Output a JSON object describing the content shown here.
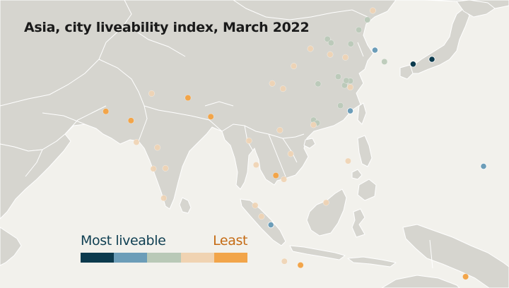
{
  "title": "Asia, city liveability index, March 2022",
  "legend": {
    "most_label": "Most liveable",
    "least_label": "Least",
    "most_color": "#0f3f52",
    "least_color": "#c56b14",
    "classes": [
      {
        "level": 1,
        "color": "#0c3a4d"
      },
      {
        "level": 2,
        "color": "#6c9db8"
      },
      {
        "level": 3,
        "color": "#b9c9b7"
      },
      {
        "level": 4,
        "color": "#f0d3b2"
      },
      {
        "level": 5,
        "color": "#f2a54a"
      }
    ]
  },
  "cities": [
    {
      "lon": 139.7,
      "lat": 35.7,
      "level": 1
    },
    {
      "lon": 135.5,
      "lat": 34.7,
      "level": 1
    },
    {
      "lon": 127.0,
      "lat": 37.6,
      "level": 2
    },
    {
      "lon": 121.5,
      "lat": 25.0,
      "level": 2
    },
    {
      "lon": 151.2,
      "lat": 13.5,
      "level": 2
    },
    {
      "lon": 103.8,
      "lat": 1.35,
      "level": 2
    },
    {
      "lon": 129.1,
      "lat": 35.2,
      "level": 3
    },
    {
      "lon": 116.4,
      "lat": 39.9,
      "level": 3
    },
    {
      "lon": 117.2,
      "lat": 39.1,
      "level": 3
    },
    {
      "lon": 121.5,
      "lat": 31.2,
      "level": 3
    },
    {
      "lon": 120.2,
      "lat": 30.3,
      "level": 3
    },
    {
      "lon": 118.8,
      "lat": 32.1,
      "level": 3
    },
    {
      "lon": 120.6,
      "lat": 31.3,
      "level": 3
    },
    {
      "lon": 114.3,
      "lat": 30.6,
      "level": 3
    },
    {
      "lon": 113.3,
      "lat": 23.1,
      "level": 3
    },
    {
      "lon": 114.1,
      "lat": 22.5,
      "level": 3
    },
    {
      "lon": 119.3,
      "lat": 26.1,
      "level": 3
    },
    {
      "lon": 125.3,
      "lat": 43.9,
      "level": 3
    },
    {
      "lon": 123.4,
      "lat": 41.8,
      "level": 3
    },
    {
      "lon": 121.6,
      "lat": 38.9,
      "level": 3
    },
    {
      "lon": 120.4,
      "lat": 36.1,
      "level": 4
    },
    {
      "lon": 117.0,
      "lat": 36.7,
      "level": 4
    },
    {
      "lon": 126.5,
      "lat": 45.8,
      "level": 4
    },
    {
      "lon": 121.5,
      "lat": 29.9,
      "level": 4
    },
    {
      "lon": 112.6,
      "lat": 37.9,
      "level": 4
    },
    {
      "lon": 108.9,
      "lat": 34.3,
      "level": 4
    },
    {
      "lon": 104.1,
      "lat": 30.7,
      "level": 4
    },
    {
      "lon": 106.5,
      "lat": 29.6,
      "level": 4
    },
    {
      "lon": 113.3,
      "lat": 22.1,
      "level": 4
    },
    {
      "lon": 108.2,
      "lat": 16.1,
      "level": 4
    },
    {
      "lon": 105.8,
      "lat": 21.0,
      "level": 4
    },
    {
      "lon": 106.7,
      "lat": 10.8,
      "level": 4
    },
    {
      "lon": 100.5,
      "lat": 13.8,
      "level": 4
    },
    {
      "lon": 98.9,
      "lat": 18.8,
      "level": 4
    },
    {
      "lon": 121.0,
      "lat": 14.6,
      "level": 4
    },
    {
      "lon": 101.7,
      "lat": 3.1,
      "level": 4
    },
    {
      "lon": 100.3,
      "lat": 5.4,
      "level": 4
    },
    {
      "lon": 116.1,
      "lat": 5.98,
      "level": 4
    },
    {
      "lon": 106.8,
      "lat": -6.2,
      "level": 4
    },
    {
      "lon": 77.6,
      "lat": 13.0,
      "level": 4
    },
    {
      "lon": 80.3,
      "lat": 13.1,
      "level": 4
    },
    {
      "lon": 78.5,
      "lat": 17.4,
      "level": 4
    },
    {
      "lon": 79.9,
      "lat": 6.9,
      "level": 4
    },
    {
      "lon": 77.2,
      "lat": 28.6,
      "level": 4
    },
    {
      "lon": 73.8,
      "lat": 18.5,
      "level": 4
    },
    {
      "lon": 72.6,
      "lat": 23.0,
      "level": 5
    },
    {
      "lon": 85.3,
      "lat": 27.7,
      "level": 5
    },
    {
      "lon": 90.4,
      "lat": 23.8,
      "level": 5
    },
    {
      "lon": 67.0,
      "lat": 24.9,
      "level": 5
    },
    {
      "lon": 104.9,
      "lat": 11.6,
      "level": 5
    },
    {
      "lon": 110.4,
      "lat": -7.0,
      "level": 5
    },
    {
      "lon": 147.2,
      "lat": -9.4,
      "level": 5
    }
  ]
}
